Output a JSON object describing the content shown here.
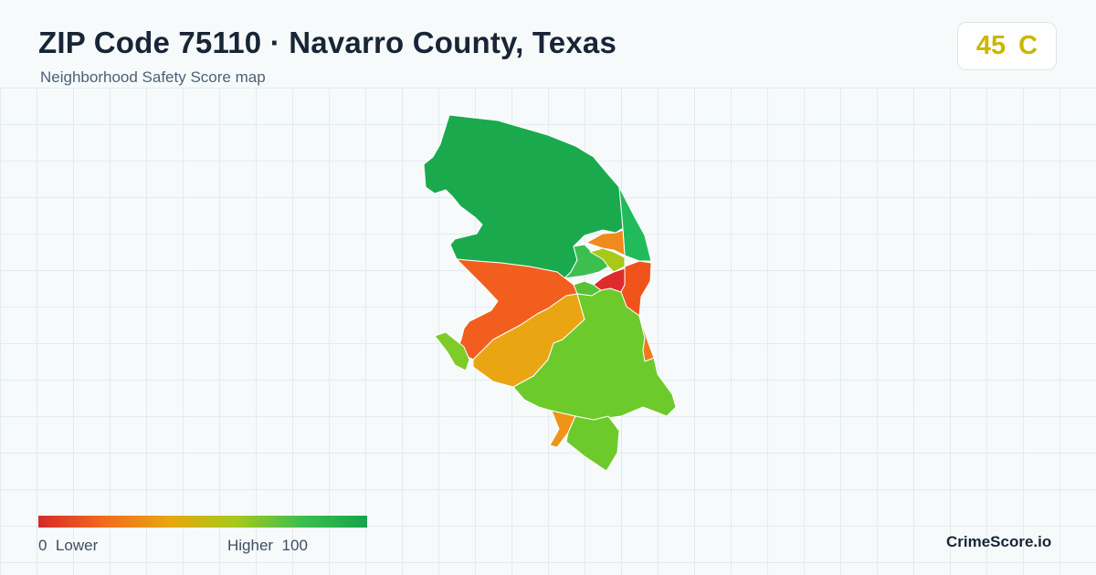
{
  "header": {
    "title": "ZIP Code 75110 · Navarro County, Texas",
    "subtitle": "Neighborhood Safety Score map"
  },
  "score_badge": {
    "score": "45",
    "grade": "C",
    "color": "#c9b800"
  },
  "map": {
    "regions": [
      {
        "name": "north-region",
        "color": "#1aaa4d"
      },
      {
        "name": "northeast-strip-region",
        "color": "#22bb5c"
      },
      {
        "name": "central-north-small-region",
        "color": "#3cbf4e"
      },
      {
        "name": "central-orange-small-region",
        "color": "#f08a1c"
      },
      {
        "name": "central-yellowgreen-region",
        "color": "#a8c81a"
      },
      {
        "name": "central-light-green-region",
        "color": "#58c236"
      },
      {
        "name": "downtown-red-region",
        "color": "#de2b2b"
      },
      {
        "name": "east-orange-red-region",
        "color": "#f0541c"
      },
      {
        "name": "west-orange-region",
        "color": "#f25e1e"
      },
      {
        "name": "southwest-amber-region",
        "color": "#eaa612"
      },
      {
        "name": "south-green-region",
        "color": "#6ccb2a"
      },
      {
        "name": "southeast-orange-sliver-region",
        "color": "#f07a1c"
      },
      {
        "name": "west-small-green-region",
        "color": "#7dcc2a"
      },
      {
        "name": "south-orange-tip-region",
        "color": "#ee9418"
      },
      {
        "name": "south-green-tip-region",
        "color": "#6ccb2a"
      }
    ]
  },
  "legend": {
    "low_value": "0",
    "low_label": "Lower",
    "high_label": "Higher",
    "high_value": "100",
    "colors": [
      "#d62a2a",
      "#f26b1d",
      "#e7a712",
      "#a8c81a",
      "#3cbf4e",
      "#15a34a"
    ]
  },
  "brand": "CrimeScore.io"
}
